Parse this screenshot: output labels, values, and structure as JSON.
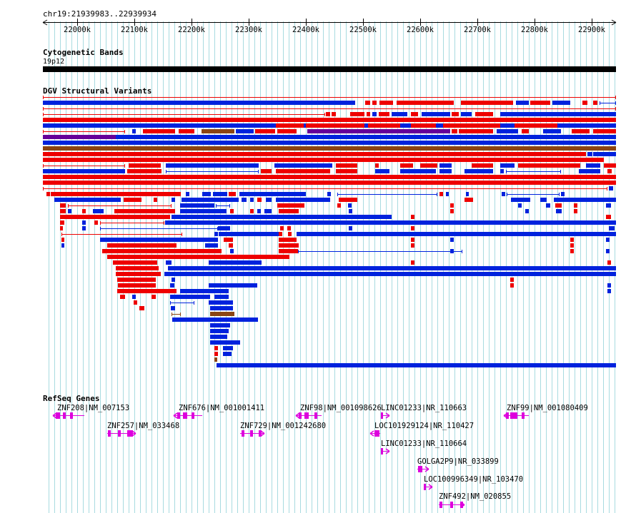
{
  "header": {
    "location": "chr19:21939983..22939934",
    "ticks": [
      "22000k",
      "22100k",
      "22200k",
      "22300k",
      "22400k",
      "22500k",
      "22600k",
      "22700k",
      "22800k",
      "22900k"
    ]
  },
  "tracks": {
    "cytobands": {
      "title": "Cytogenetic Bands",
      "band": "19p12"
    },
    "dgv": {
      "title": "DGV Structural Variants"
    },
    "refseq": {
      "title": "RefSeq Genes",
      "genes": [
        "ZNF208|NM_007153",
        "ZNF257|NM_033468",
        "ZNF676|NM_001001411",
        "ZNF729|NM_001242680",
        "ZNF98|NM_001098626",
        "LINC01233|NR_110663",
        "LOC101929124|NR_110427",
        "LINC01233|NR_110664",
        "GOLGA2P9|NR_033899",
        "LOC100996349|NR_103470",
        "ZNF492|NM_020855",
        "ZNF99|NM_001080409"
      ]
    }
  },
  "colors": {
    "gain": "#ee0000",
    "loss": "#0022dd",
    "gainloss": "#8b4513",
    "complex": "#660099",
    "gene": "#dd00dd",
    "grid": "#a8dbe0"
  }
}
